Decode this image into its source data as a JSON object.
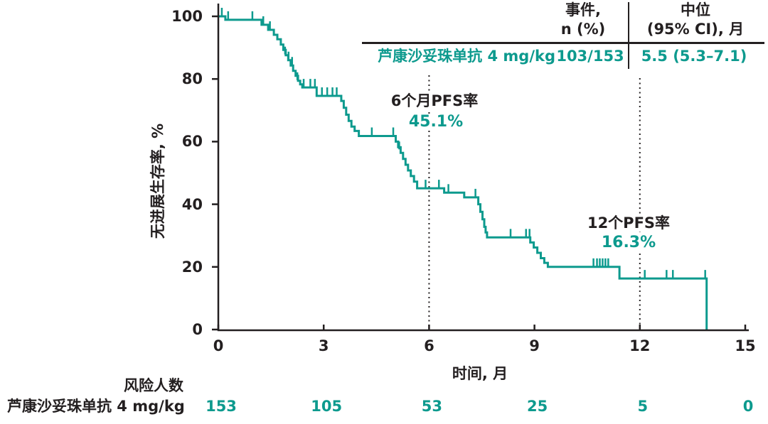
{
  "colors": {
    "accent": "#0d9a8e",
    "ink": "#231f20"
  },
  "chart_data": {
    "type": "line",
    "subtype": "kaplan-meier-step",
    "title": "",
    "xlabel": "时间, 月",
    "ylabel": "无进展生存率, %",
    "xlim": [
      0,
      15
    ],
    "ylim": [
      0,
      100
    ],
    "x_ticks": [
      0,
      3,
      6,
      9,
      12,
      15
    ],
    "y_ticks": [
      0,
      20,
      40,
      60,
      80,
      100
    ],
    "grid": false,
    "legend_position": "none",
    "series": [
      {
        "name": "芦康沙妥珠单抗 4 mg/kg",
        "color": "#0d9a8e",
        "steps": [
          [
            0,
            100
          ],
          [
            0.2,
            98.9
          ],
          [
            1.23,
            97.3
          ],
          [
            1.42,
            95.7
          ],
          [
            1.58,
            94.1
          ],
          [
            1.68,
            92.7
          ],
          [
            1.78,
            91.0
          ],
          [
            1.85,
            89.3
          ],
          [
            1.92,
            87.6
          ],
          [
            1.99,
            86.0
          ],
          [
            2.06,
            84.3
          ],
          [
            2.13,
            82.6
          ],
          [
            2.2,
            81.0
          ],
          [
            2.27,
            79.4
          ],
          [
            2.33,
            78.3
          ],
          [
            2.39,
            77.3
          ],
          [
            2.8,
            74.6
          ],
          [
            3.5,
            73.0
          ],
          [
            3.57,
            70.8
          ],
          [
            3.64,
            68.6
          ],
          [
            3.71,
            66.6
          ],
          [
            3.79,
            64.8
          ],
          [
            3.88,
            63.4
          ],
          [
            4.0,
            61.8
          ],
          [
            5.05,
            60.0
          ],
          [
            5.12,
            58.2
          ],
          [
            5.19,
            56.4
          ],
          [
            5.26,
            54.5
          ],
          [
            5.33,
            52.6
          ],
          [
            5.4,
            50.8
          ],
          [
            5.48,
            49.0
          ],
          [
            5.57,
            47.2
          ],
          [
            5.66,
            45.1
          ],
          [
            6.43,
            43.7
          ],
          [
            7.0,
            42.2
          ],
          [
            7.4,
            40.0
          ],
          [
            7.46,
            37.6
          ],
          [
            7.52,
            35.2
          ],
          [
            7.57,
            32.8
          ],
          [
            7.61,
            31.0
          ],
          [
            7.65,
            29.4
          ],
          [
            8.88,
            27.8
          ],
          [
            8.98,
            26.2
          ],
          [
            9.08,
            24.5
          ],
          [
            9.18,
            22.8
          ],
          [
            9.28,
            21.3
          ],
          [
            9.38,
            20.0
          ],
          [
            11.42,
            16.3
          ],
          [
            13.9,
            0
          ]
        ],
        "censors": [
          [
            0.1,
            100
          ],
          [
            0.28,
            98.9
          ],
          [
            0.97,
            98.9
          ],
          [
            1.28,
            97.3
          ],
          [
            1.47,
            95.7
          ],
          [
            1.9,
            87.6
          ],
          [
            2.0,
            86.0
          ],
          [
            2.1,
            84.3
          ],
          [
            2.25,
            79.4
          ],
          [
            2.43,
            77.3
          ],
          [
            2.62,
            77.3
          ],
          [
            2.75,
            77.3
          ],
          [
            2.95,
            74.6
          ],
          [
            3.1,
            74.6
          ],
          [
            3.25,
            74.6
          ],
          [
            3.37,
            74.6
          ],
          [
            4.37,
            61.8
          ],
          [
            4.98,
            61.8
          ],
          [
            5.15,
            57.3
          ],
          [
            5.9,
            45.1
          ],
          [
            6.28,
            45.1
          ],
          [
            6.55,
            43.7
          ],
          [
            7.32,
            42.2
          ],
          [
            8.32,
            29.4
          ],
          [
            8.76,
            29.4
          ],
          [
            8.86,
            29.4
          ],
          [
            10.68,
            20
          ],
          [
            10.78,
            20
          ],
          [
            10.86,
            20
          ],
          [
            10.94,
            20
          ],
          [
            11.02,
            20
          ],
          [
            11.1,
            20
          ],
          [
            12.14,
            16.3
          ],
          [
            12.76,
            16.3
          ],
          [
            12.94,
            16.3
          ],
          [
            13.86,
            16.3
          ]
        ]
      }
    ],
    "reference_lines": [
      {
        "x": 6
      },
      {
        "x": 12
      }
    ],
    "annotations": [
      {
        "label": "6个月PFS率",
        "value": "45.1%",
        "x": 6
      },
      {
        "label": "12个PFS率",
        "value": "16.3%",
        "x": 12
      }
    ]
  },
  "summary_table": {
    "col_events_header_line1": "事件,",
    "col_events_header_line2": "n (%)",
    "col_median_header_line1": "中位",
    "col_median_header_line2": "(95% CI), 月",
    "row": {
      "name": "芦康沙妥珠单抗 4 mg/kg",
      "events": "103/153",
      "median": "5.5 (5.3–7.1)"
    }
  },
  "risk_table": {
    "title": "风险人数",
    "row_label": "芦康沙妥珠单抗 4 mg/kg",
    "counts": [
      "153",
      "105",
      "53",
      "25",
      "5",
      "0"
    ]
  }
}
